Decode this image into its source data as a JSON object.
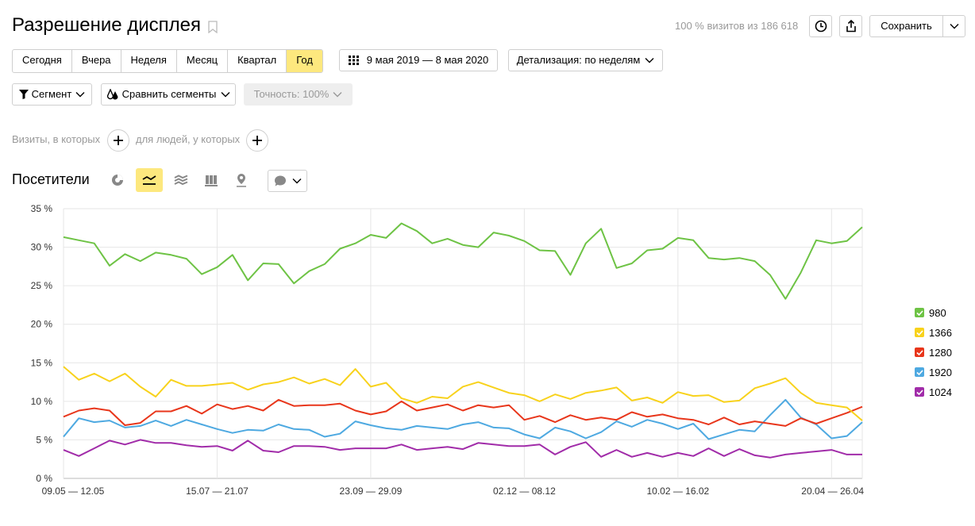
{
  "header": {
    "title": "Разрешение дисплея",
    "visits_text": "100 % визитов из 186 618",
    "save_label": "Сохранить"
  },
  "periods": [
    {
      "label": "Сегодня",
      "active": false
    },
    {
      "label": "Вчера",
      "active": false
    },
    {
      "label": "Неделя",
      "active": false
    },
    {
      "label": "Месяц",
      "active": false
    },
    {
      "label": "Квартал",
      "active": false
    },
    {
      "label": "Год",
      "active": true
    }
  ],
  "date_range": "9 мая 2019 — 8 мая 2020",
  "detail": "Детализация: по неделям",
  "segment_label": "Сегмент",
  "compare_label": "Сравнить сегменты",
  "accuracy_label": "Точность: 100%",
  "filters": {
    "visits_label": "Визиты, в которых",
    "people_label": "для людей, у которых"
  },
  "visitors_title": "Посетители",
  "icons": {
    "bookmark": "bookmark-icon",
    "history": "clock-icon",
    "export": "share-icon",
    "chart_types": [
      "pie-chart-icon",
      "line-chart-icon",
      "area-chart-icon",
      "bar-chart-icon",
      "map-pin-icon"
    ],
    "comment": "comment-icon"
  },
  "chart_data": {
    "type": "line",
    "ylim": [
      0,
      35
    ],
    "yticks": [
      "0 %",
      "5 %",
      "10 %",
      "15 %",
      "20 %",
      "25 %",
      "30 %",
      "35 %"
    ],
    "xtick_labels": [
      "09.05 — 12.05",
      "15.07 — 21.07",
      "23.09 — 29.09",
      "02.12 — 08.12",
      "10.02 — 16.02",
      "20.04 — 26.04"
    ],
    "xtick_index": [
      0,
      10,
      20,
      30,
      40,
      50
    ],
    "grid": true,
    "legend_position": "right",
    "series": [
      {
        "name": "980",
        "color": "#6ec345",
        "values": [
          31.3,
          30.9,
          30.5,
          27.6,
          29.1,
          28.2,
          29.3,
          29.0,
          28.5,
          26.5,
          27.4,
          29.0,
          25.7,
          27.9,
          27.8,
          25.3,
          26.9,
          27.8,
          29.8,
          30.5,
          31.6,
          31.2,
          33.1,
          32.1,
          30.5,
          31.1,
          30.3,
          30.0,
          31.9,
          31.5,
          30.8,
          29.6,
          29.5,
          26.4,
          30.5,
          32.4,
          27.3,
          27.9,
          29.6,
          29.8,
          31.2,
          30.9,
          28.6,
          28.4,
          28.6,
          28.2,
          26.4,
          23.3,
          26.7,
          30.9,
          30.5,
          30.8,
          32.6
        ]
      },
      {
        "name": "1366",
        "color": "#f8d21c",
        "values": [
          14.5,
          12.8,
          13.6,
          12.6,
          13.6,
          11.9,
          10.6,
          12.8,
          12.0,
          12.0,
          12.2,
          12.4,
          11.5,
          12.2,
          12.5,
          13.1,
          12.3,
          12.9,
          12.1,
          14.2,
          11.9,
          12.4,
          10.4,
          9.8,
          10.6,
          10.4,
          11.9,
          12.5,
          11.8,
          11.1,
          10.8,
          10.0,
          10.9,
          10.3,
          11.1,
          11.4,
          11.8,
          10.1,
          10.5,
          9.8,
          11.2,
          10.7,
          10.8,
          9.9,
          10.1,
          11.7,
          12.3,
          13.0,
          11.1,
          9.8,
          9.5,
          9.2,
          7.5
        ]
      },
      {
        "name": "1280",
        "color": "#e8361b",
        "values": [
          8.0,
          8.8,
          9.1,
          8.8,
          6.9,
          7.2,
          8.7,
          8.7,
          9.4,
          8.4,
          9.6,
          9.0,
          9.4,
          8.8,
          10.2,
          9.4,
          9.5,
          9.5,
          9.7,
          8.8,
          8.3,
          8.7,
          10.0,
          8.8,
          9.2,
          9.6,
          8.8,
          9.5,
          9.2,
          9.5,
          7.6,
          8.1,
          7.3,
          8.2,
          7.6,
          7.9,
          7.6,
          8.6,
          8.0,
          8.3,
          7.8,
          7.6,
          7.0,
          7.9,
          7.0,
          7.4,
          7.1,
          6.8,
          7.8,
          7.1,
          7.8,
          8.5,
          9.3
        ]
      },
      {
        "name": "1920",
        "color": "#4ea9e1",
        "values": [
          5.4,
          7.8,
          7.3,
          7.5,
          6.6,
          6.8,
          7.5,
          6.8,
          7.6,
          7.0,
          6.4,
          5.9,
          6.3,
          6.2,
          7.0,
          6.4,
          6.3,
          5.4,
          5.8,
          7.4,
          6.9,
          6.5,
          6.3,
          6.8,
          6.6,
          6.4,
          7.0,
          7.3,
          6.6,
          6.5,
          5.7,
          5.2,
          6.6,
          6.1,
          5.2,
          6.0,
          7.4,
          6.7,
          7.6,
          7.1,
          6.4,
          7.1,
          5.1,
          5.7,
          6.3,
          6.1,
          8.2,
          10.2,
          7.9,
          7.0,
          5.2,
          5.5,
          7.3
        ]
      },
      {
        "name": "1024",
        "color": "#a12ca9",
        "values": [
          3.7,
          2.9,
          3.9,
          4.9,
          4.4,
          5.0,
          4.6,
          4.6,
          4.3,
          4.1,
          4.2,
          3.6,
          4.9,
          3.6,
          3.4,
          4.2,
          4.2,
          4.1,
          3.7,
          3.9,
          3.9,
          3.9,
          4.4,
          3.7,
          3.9,
          4.1,
          3.8,
          4.6,
          4.4,
          4.2,
          4.2,
          4.4,
          3.1,
          4.1,
          4.7,
          2.8,
          3.7,
          2.8,
          3.3,
          2.8,
          3.3,
          2.9,
          3.9,
          2.9,
          3.8,
          3.0,
          2.7,
          3.1,
          3.3,
          3.5,
          3.7,
          3.1,
          3.1
        ]
      }
    ]
  }
}
